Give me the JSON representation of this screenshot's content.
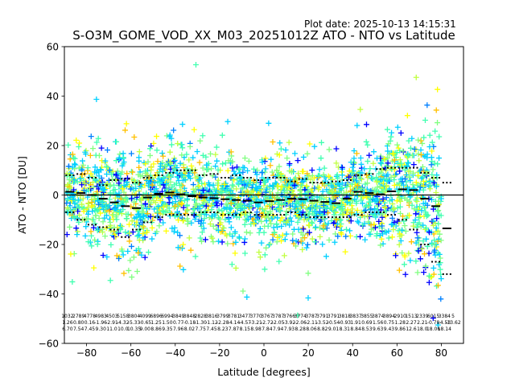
{
  "figure": {
    "plot_date": "Plot date: 2025-10-13 14:15:31",
    "title": "S-O3M_GOME_VOD_XX_M03_20251012Z ATO - NTO vs Latitude"
  },
  "chart_data": {
    "type": "scatter",
    "title": "S-O3M_GOME_VOD_XX_M03_20251012Z ATO - NTO vs Latitude",
    "xlabel": "Latitude [degrees]",
    "ylabel": "ATO - NTO [DU]",
    "xlim": [
      -90,
      90
    ],
    "ylim": [
      -60,
      60
    ],
    "xticks": [
      -80,
      -60,
      -40,
      -20,
      0,
      20,
      40,
      60,
      80
    ],
    "yticks": [
      -60,
      -40,
      -20,
      0,
      20,
      40,
      60
    ],
    "grid": false,
    "marker": "+",
    "colormap": [
      "#0000ff",
      "#0080ff",
      "#00d0ff",
      "#40ffb0",
      "#80ff80",
      "#c0ff40",
      "#ffff00",
      "#ffc000"
    ],
    "reference_line_y": 0,
    "bin_width_deg": 5,
    "bin_mean": {
      "x": [
        -87.5,
        -82.5,
        -77.5,
        -72.5,
        -67.5,
        -62.5,
        -57.5,
        -52.5,
        -47.5,
        -42.5,
        -37.5,
        -32.5,
        -27.5,
        -22.5,
        -17.5,
        -12.5,
        -7.5,
        -2.5,
        2.5,
        7.5,
        12.5,
        17.5,
        22.5,
        27.5,
        32.5,
        37.5,
        42.5,
        47.5,
        52.5,
        57.5,
        62.5,
        67.5,
        72.5,
        77.5,
        82.5
      ],
      "y": [
        1.3,
        0.8,
        0,
        -1.5,
        -3.0,
        -4.5,
        -5.3,
        -1.0,
        0.5,
        1.0,
        0.3,
        -0.5,
        -1.0,
        -1.3,
        -1.7,
        -2.0,
        -2.3,
        -3.0,
        -2.5,
        -2.0,
        -1.5,
        -1.7,
        -2.3,
        -2.8,
        -3.3,
        -1.5,
        1.3,
        0.8,
        0.3,
        1.5,
        2.3,
        2.0,
        -1.5,
        -4.5,
        -13.5
      ]
    },
    "bin_upper": {
      "x": [
        -87.5,
        -82.5,
        -77.5,
        -72.5,
        -67.5,
        -62.5,
        -57.5,
        -52.5,
        -47.5,
        -42.5,
        -37.5,
        -32.5,
        -27.5,
        -22.5,
        -17.5,
        -12.5,
        -7.5,
        -2.5,
        2.5,
        7.5,
        12.5,
        17.5,
        22.5,
        27.5,
        32.5,
        37.5,
        42.5,
        47.5,
        52.5,
        57.5,
        62.5,
        67.5,
        72.5,
        77.5,
        82.5
      ],
      "y": [
        8,
        8.5,
        7,
        4,
        6,
        6.5,
        5,
        7,
        8,
        9,
        10,
        10,
        8,
        8.5,
        7,
        8,
        7,
        6,
        7,
        7,
        5.5,
        6.5,
        5,
        5,
        5.5,
        6,
        8,
        8.5,
        10.5,
        11,
        11,
        11,
        9,
        7,
        5
      ]
    },
    "bin_lower": {
      "x": [
        -87.5,
        -82.5,
        -77.5,
        -72.5,
        -67.5,
        -62.5,
        -57.5,
        -52.5,
        -47.5,
        -42.5,
        -37.5,
        -32.5,
        -27.5,
        -22.5,
        -17.5,
        -12.5,
        -7.5,
        -2.5,
        2.5,
        7.5,
        12.5,
        17.5,
        22.5,
        27.5,
        32.5,
        37.5,
        42.5,
        47.5,
        52.5,
        57.5,
        62.5,
        67.5,
        72.5,
        77.5,
        82.5
      ],
      "y": [
        -7,
        -10,
        -12,
        -13,
        -14,
        -17,
        -14,
        -11,
        -9,
        -8,
        -8,
        -8,
        -7,
        -7,
        -8,
        -8,
        -7,
        -8,
        -8,
        -8,
        -7,
        -8,
        -9,
        -9,
        -9,
        -9,
        -8,
        -7,
        -7,
        -8,
        -10,
        -14,
        -20,
        -27,
        -32
      ]
    },
    "bin_stats_text": [
      "1032\n1.26\n6.70",
      "2789\n0.80\n7.54",
      "4778\n0.16\n7.45",
      "4983\n-1.96\n9.30",
      "4503\n-2.91\n11.0",
      "5158\n-4.32\n10.0",
      "3804\n-5.33\n10.35",
      "4099\n-0.65\n9.00",
      "6896\n1.25\n8.86",
      "6994\n1.50\n9.35",
      "3849\n0.77\n7.96",
      "3848\n-0.18\n8.02",
      "2828\n-1.30\n7.75",
      "3816\n-1.12\n7.45",
      "3799\n-2.28\n8.23",
      "3781\n-4.14\n7.87",
      "3477\n-4.57\n8.15",
      "3770\n-3.21\n8.98",
      "3767\n-2.72\n7.84",
      "3787\n-2.05\n7.94",
      "3766\n-3.92\n7.93",
      "3774\n-2.06\n8.28",
      "3787\n-2.11\n8.06",
      "3791\n-3.52\n8.82",
      "3791\n-0.54\n9.01",
      "3818\n-0.93\n8.31",
      "3837\n1.91\n8.84",
      "3855\n0.69\n8.53",
      "3874\n1.56\n9.63",
      "3894\n0.75\n9.43",
      "2910\n1.28\n9.86",
      "1513\n2.27\n12.6",
      "2339\n2.21\n18.0",
      "6015\n-0.78\n18.06",
      "3384\n-4.53\n18.14"
    ],
    "bin_stats_extra_text": "5\n-13.62"
  }
}
